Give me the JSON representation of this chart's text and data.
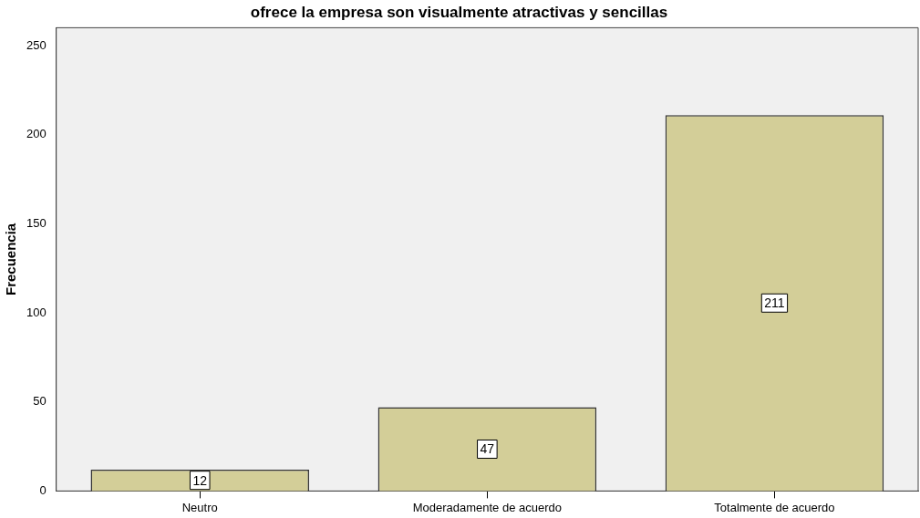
{
  "chart_data": {
    "type": "bar",
    "title": "ofrece la empresa son visualmente atractivas y sencillas",
    "ylabel": "Frecuencia",
    "categories": [
      "Neutro",
      "Moderadamente de acuerdo",
      "Totalmente de acuerdo"
    ],
    "values": [
      12,
      47,
      211
    ],
    "color": "#d3ce98",
    "ylim": [
      0,
      260
    ],
    "yticks": [
      0,
      50,
      100,
      150,
      200,
      250
    ],
    "grid": false,
    "legend": false,
    "data_labels": true
  }
}
